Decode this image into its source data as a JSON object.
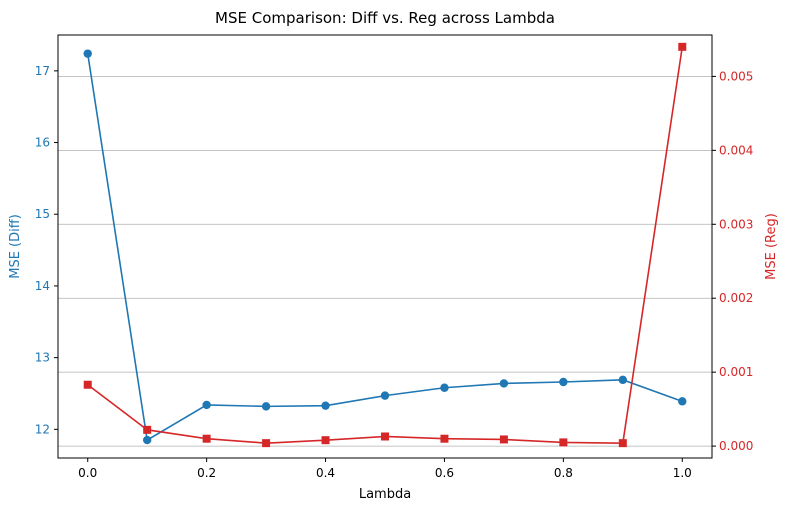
{
  "chart_data": {
    "type": "line",
    "title": "MSE Comparison: Diff vs. Reg across Lambda",
    "xlabel": "Lambda",
    "ylabel_left": "MSE (Diff)",
    "ylabel_right": "MSE (Reg)",
    "x": [
      0.0,
      0.1,
      0.2,
      0.3,
      0.4,
      0.5,
      0.6,
      0.7,
      0.8,
      0.9,
      1.0
    ],
    "x_ticks": [
      "0.0",
      "0.2",
      "0.4",
      "0.6",
      "0.8",
      "1.0"
    ],
    "x_tick_values": [
      0.0,
      0.2,
      0.4,
      0.6,
      0.8,
      1.0
    ],
    "xlim": [
      -0.05,
      1.05
    ],
    "left_axis": {
      "ylim": [
        11.6,
        17.5
      ],
      "ticks": [
        "12",
        "13",
        "14",
        "15",
        "16",
        "17"
      ],
      "tick_values": [
        12,
        13,
        14,
        15,
        16,
        17
      ],
      "color": "#1f77b4"
    },
    "right_axis": {
      "ylim": [
        -0.000161,
        0.00556
      ],
      "ticks": [
        "0.000",
        "0.001",
        "0.002",
        "0.003",
        "0.004",
        "0.005"
      ],
      "tick_values": [
        0.0,
        0.001,
        0.002,
        0.003,
        0.004,
        0.005
      ],
      "color": "#d62728"
    },
    "grid": "horizontal lines at right-axis ticks",
    "series": [
      {
        "axis": "left",
        "marker": "circle",
        "color": "#1f77b4",
        "values": [
          17.24,
          11.85,
          12.34,
          12.32,
          12.33,
          12.47,
          12.58,
          12.64,
          12.66,
          12.69,
          12.39
        ]
      },
      {
        "axis": "right",
        "marker": "square",
        "color": "#d62728",
        "values": [
          0.00083,
          0.00022,
          0.0001,
          4e-05,
          8e-05,
          0.00013,
          0.0001,
          9e-05,
          5e-05,
          4e-05,
          0.0054
        ]
      }
    ]
  }
}
